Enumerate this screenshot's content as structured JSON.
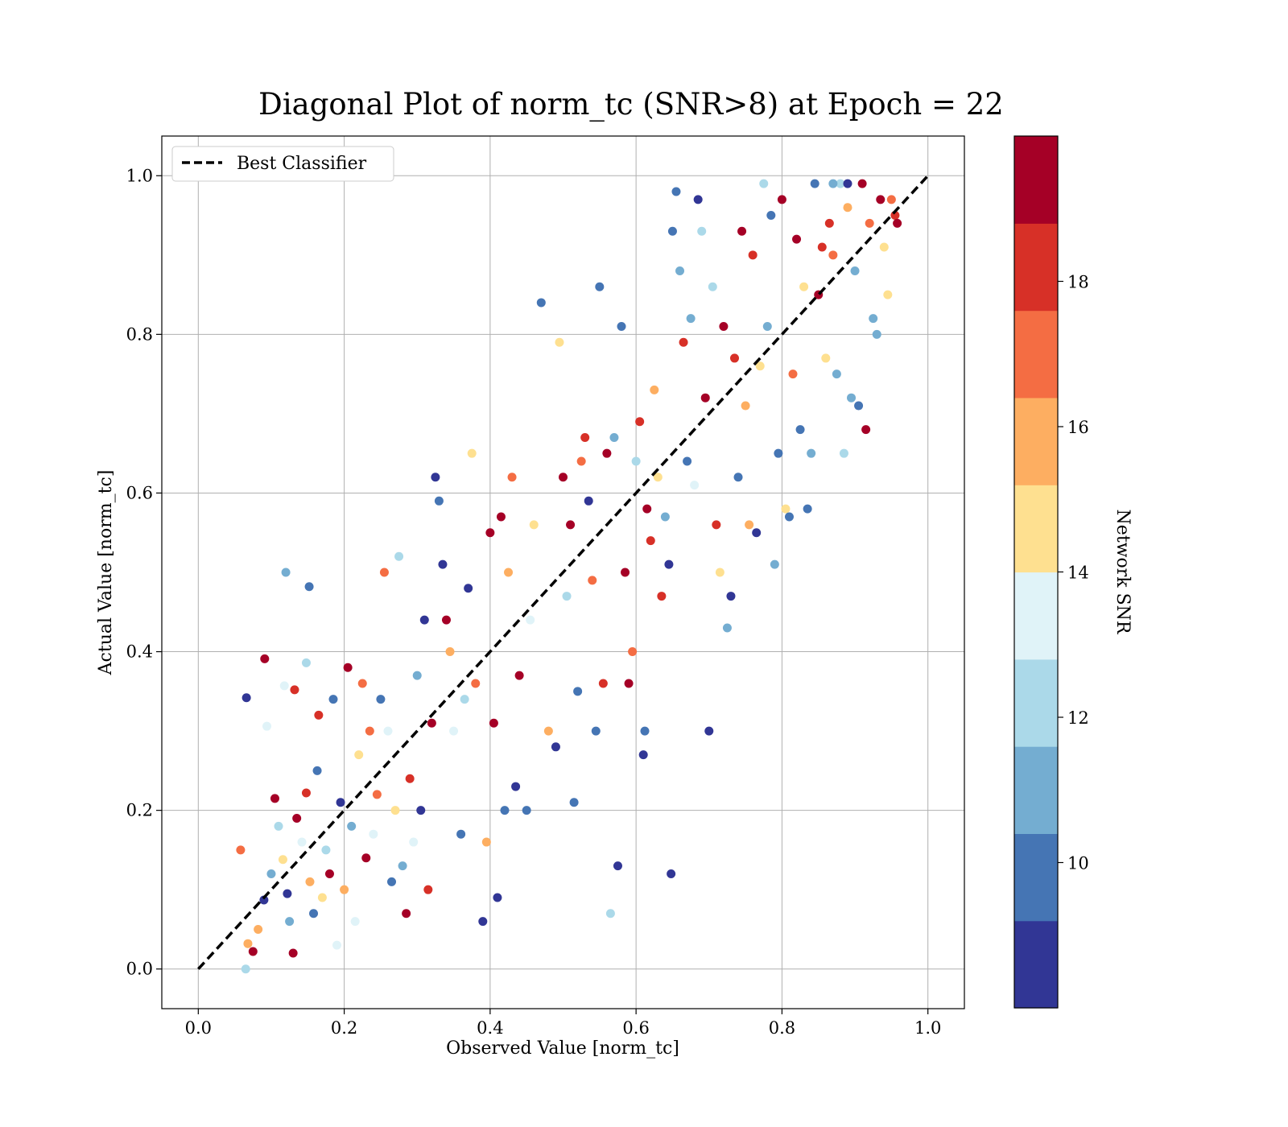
{
  "chart_data": {
    "type": "scatter",
    "title": "Diagonal Plot of norm_tc (SNR>8) at Epoch = 22",
    "xlabel": "Observed Value [norm_tc]",
    "ylabel": "Actual Value [norm_tc]",
    "xlim": [
      -0.05,
      1.05
    ],
    "ylim": [
      -0.05,
      1.05
    ],
    "xticks": [
      "0.0",
      "0.2",
      "0.4",
      "0.6",
      "0.8",
      "1.0"
    ],
    "yticks": [
      "0.0",
      "0.2",
      "0.4",
      "0.6",
      "0.8",
      "1.0"
    ],
    "grid": true,
    "legend": {
      "position": "upper-left",
      "entries": [
        "Best Classifier"
      ]
    },
    "reference_line": {
      "label": "Best Classifier",
      "x": [
        0,
        1
      ],
      "y": [
        0,
        1
      ],
      "style": "dashed",
      "color": "#000000"
    },
    "colorbar": {
      "label": "Network SNR",
      "range": [
        8,
        20
      ],
      "tick_values": [
        10,
        12,
        14,
        16,
        18
      ],
      "ticks": [
        "10",
        "12",
        "14",
        "16",
        "18"
      ],
      "colors": [
        "#313695",
        "#4575b4",
        "#74add1",
        "#abd9e9",
        "#e0f3f8",
        "#fee090",
        "#fdae61",
        "#f46d43",
        "#d73027",
        "#a50026"
      ]
    },
    "points": [
      [
        0.066,
        0.342,
        9.0
      ],
      [
        0.091,
        0.391,
        19.2
      ],
      [
        0.12,
        0.5,
        11.3
      ],
      [
        0.152,
        0.482,
        10.1
      ],
      [
        0.148,
        0.386,
        12.3
      ],
      [
        0.132,
        0.352,
        18.7
      ],
      [
        0.118,
        0.357,
        13.6
      ],
      [
        0.094,
        0.306,
        13.1
      ],
      [
        0.068,
        0.032,
        16.4
      ],
      [
        0.075,
        0.022,
        18.9
      ],
      [
        0.058,
        0.15,
        17.2
      ],
      [
        0.065,
        0.0,
        12.4
      ],
      [
        0.082,
        0.05,
        15.2
      ],
      [
        0.09,
        0.087,
        9.1
      ],
      [
        0.1,
        0.12,
        10.6
      ],
      [
        0.105,
        0.215,
        19.6
      ],
      [
        0.11,
        0.18,
        12.0
      ],
      [
        0.116,
        0.138,
        14.9
      ],
      [
        0.122,
        0.095,
        8.9
      ],
      [
        0.125,
        0.06,
        11.0
      ],
      [
        0.13,
        0.02,
        19.1
      ],
      [
        0.135,
        0.19,
        19.4
      ],
      [
        0.142,
        0.16,
        13.3
      ],
      [
        0.148,
        0.222,
        18.5
      ],
      [
        0.153,
        0.11,
        16.2
      ],
      [
        0.158,
        0.07,
        10.2
      ],
      [
        0.163,
        0.25,
        9.4
      ],
      [
        0.165,
        0.32,
        17.6
      ],
      [
        0.17,
        0.09,
        14.4
      ],
      [
        0.175,
        0.15,
        12.5
      ],
      [
        0.18,
        0.12,
        19.7
      ],
      [
        0.185,
        0.34,
        10.3
      ],
      [
        0.19,
        0.03,
        13.2
      ],
      [
        0.195,
        0.21,
        8.8
      ],
      [
        0.2,
        0.1,
        15.8
      ],
      [
        0.205,
        0.38,
        19.2
      ],
      [
        0.21,
        0.18,
        11.2
      ],
      [
        0.215,
        0.06,
        12.9
      ],
      [
        0.22,
        0.27,
        14.3
      ],
      [
        0.225,
        0.36,
        16.7
      ],
      [
        0.23,
        0.14,
        19.3
      ],
      [
        0.235,
        0.3,
        16.6
      ],
      [
        0.24,
        0.17,
        13.9
      ],
      [
        0.245,
        0.22,
        17.4
      ],
      [
        0.25,
        0.34,
        10.2
      ],
      [
        0.255,
        0.5,
        17.3
      ],
      [
        0.26,
        0.3,
        13.0
      ],
      [
        0.265,
        0.11,
        9.5
      ],
      [
        0.27,
        0.2,
        14.7
      ],
      [
        0.275,
        0.52,
        12.6
      ],
      [
        0.28,
        0.13,
        11.1
      ],
      [
        0.285,
        0.07,
        19.5
      ],
      [
        0.29,
        0.24,
        17.9
      ],
      [
        0.295,
        0.16,
        13.4
      ],
      [
        0.3,
        0.37,
        10.9
      ],
      [
        0.305,
        0.2,
        8.7
      ],
      [
        0.31,
        0.44,
        9.0
      ],
      [
        0.315,
        0.1,
        18.6
      ],
      [
        0.32,
        0.31,
        19.6
      ],
      [
        0.325,
        0.62,
        9.1
      ],
      [
        0.33,
        0.59,
        10.0
      ],
      [
        0.335,
        0.51,
        9.0
      ],
      [
        0.34,
        0.44,
        18.9
      ],
      [
        0.345,
        0.4,
        15.6
      ],
      [
        0.35,
        0.3,
        13.5
      ],
      [
        0.36,
        0.17,
        9.5
      ],
      [
        0.365,
        0.34,
        11.9
      ],
      [
        0.37,
        0.48,
        9.2
      ],
      [
        0.375,
        0.65,
        14.8
      ],
      [
        0.38,
        0.36,
        17.2
      ],
      [
        0.39,
        0.06,
        8.6
      ],
      [
        0.395,
        0.16,
        16.3
      ],
      [
        0.4,
        0.55,
        19.2
      ],
      [
        0.405,
        0.31,
        19.0
      ],
      [
        0.41,
        0.09,
        9.2
      ],
      [
        0.415,
        0.57,
        19.3
      ],
      [
        0.42,
        0.2,
        9.6
      ],
      [
        0.425,
        0.5,
        16.4
      ],
      [
        0.43,
        0.62,
        16.8
      ],
      [
        0.435,
        0.23,
        8.9
      ],
      [
        0.44,
        0.37,
        19.5
      ],
      [
        0.45,
        0.2,
        10.0
      ],
      [
        0.455,
        0.44,
        13.3
      ],
      [
        0.46,
        0.56,
        14.6
      ],
      [
        0.47,
        0.84,
        10.1
      ],
      [
        0.48,
        0.3,
        15.6
      ],
      [
        0.49,
        0.28,
        9.0
      ],
      [
        0.495,
        0.79,
        14.5
      ],
      [
        0.5,
        0.62,
        19.4
      ],
      [
        0.505,
        0.47,
        12.0
      ],
      [
        0.51,
        0.56,
        19.1
      ],
      [
        0.515,
        0.21,
        10.1
      ],
      [
        0.52,
        0.35,
        9.6
      ],
      [
        0.525,
        0.64,
        16.9
      ],
      [
        0.53,
        0.67,
        18.2
      ],
      [
        0.535,
        0.59,
        8.8
      ],
      [
        0.54,
        0.49,
        16.7
      ],
      [
        0.545,
        0.3,
        10.0
      ],
      [
        0.55,
        0.86,
        9.3
      ],
      [
        0.555,
        0.36,
        18.1
      ],
      [
        0.56,
        0.65,
        19.0
      ],
      [
        0.565,
        0.07,
        12.4
      ],
      [
        0.57,
        0.67,
        11.2
      ],
      [
        0.575,
        0.13,
        9.0
      ],
      [
        0.58,
        0.81,
        10.2
      ],
      [
        0.585,
        0.5,
        19.4
      ],
      [
        0.59,
        0.36,
        19.7
      ],
      [
        0.595,
        0.4,
        16.5
      ],
      [
        0.6,
        0.64,
        12.3
      ],
      [
        0.605,
        0.69,
        18.2
      ],
      [
        0.61,
        0.27,
        8.9
      ],
      [
        0.612,
        0.3,
        10.0
      ],
      [
        0.615,
        0.58,
        19.2
      ],
      [
        0.62,
        0.54,
        17.8
      ],
      [
        0.625,
        0.73,
        15.2
      ],
      [
        0.63,
        0.62,
        14.1
      ],
      [
        0.635,
        0.47,
        17.8
      ],
      [
        0.64,
        0.57,
        11.4
      ],
      [
        0.645,
        0.51,
        9.2
      ],
      [
        0.648,
        0.12,
        9.0
      ],
      [
        0.65,
        0.93,
        10.0
      ],
      [
        0.655,
        0.98,
        9.3
      ],
      [
        0.66,
        0.88,
        11.1
      ],
      [
        0.665,
        0.79,
        17.6
      ],
      [
        0.67,
        0.64,
        9.4
      ],
      [
        0.675,
        0.82,
        10.5
      ],
      [
        0.68,
        0.61,
        13.7
      ],
      [
        0.685,
        0.97,
        9.0
      ],
      [
        0.69,
        0.93,
        11.6
      ],
      [
        0.695,
        0.72,
        19.0
      ],
      [
        0.7,
        0.3,
        9.0
      ],
      [
        0.705,
        0.86,
        12.3
      ],
      [
        0.71,
        0.56,
        17.9
      ],
      [
        0.715,
        0.5,
        14.4
      ],
      [
        0.72,
        0.81,
        19.2
      ],
      [
        0.725,
        0.43,
        11.0
      ],
      [
        0.73,
        0.47,
        8.8
      ],
      [
        0.735,
        0.77,
        18.6
      ],
      [
        0.74,
        0.62,
        9.3
      ],
      [
        0.745,
        0.93,
        18.9
      ],
      [
        0.75,
        0.71,
        16.1
      ],
      [
        0.755,
        0.56,
        16.4
      ],
      [
        0.76,
        0.9,
        18.6
      ],
      [
        0.765,
        0.55,
        9.1
      ],
      [
        0.77,
        0.76,
        14.5
      ],
      [
        0.775,
        0.99,
        12.5
      ],
      [
        0.78,
        0.81,
        10.6
      ],
      [
        0.785,
        0.95,
        9.4
      ],
      [
        0.79,
        0.51,
        11.4
      ],
      [
        0.795,
        0.65,
        10.3
      ],
      [
        0.8,
        0.97,
        19.3
      ],
      [
        0.805,
        0.58,
        14.1
      ],
      [
        0.81,
        0.57,
        9.6
      ],
      [
        0.815,
        0.75,
        17.4
      ],
      [
        0.82,
        0.92,
        19.8
      ],
      [
        0.825,
        0.68,
        9.3
      ],
      [
        0.83,
        0.86,
        14.2
      ],
      [
        0.835,
        0.58,
        10.0
      ],
      [
        0.84,
        0.65,
        10.6
      ],
      [
        0.845,
        0.99,
        9.6
      ],
      [
        0.85,
        0.85,
        19.7
      ],
      [
        0.855,
        0.91,
        17.8
      ],
      [
        0.86,
        0.77,
        14.4
      ],
      [
        0.865,
        0.94,
        18.3
      ],
      [
        0.87,
        0.9,
        16.8
      ],
      [
        0.875,
        0.75,
        10.9
      ],
      [
        0.88,
        0.99,
        12.5
      ],
      [
        0.885,
        0.65,
        12.3
      ],
      [
        0.89,
        0.96,
        15.4
      ],
      [
        0.895,
        0.72,
        10.5
      ],
      [
        0.9,
        0.88,
        11.2
      ],
      [
        0.905,
        0.71,
        9.4
      ],
      [
        0.91,
        0.99,
        19.4
      ],
      [
        0.915,
        0.68,
        19.6
      ],
      [
        0.92,
        0.94,
        17.4
      ],
      [
        0.925,
        0.82,
        11.5
      ],
      [
        0.93,
        0.8,
        11.0
      ],
      [
        0.935,
        0.97,
        18.8
      ],
      [
        0.94,
        0.91,
        14.5
      ],
      [
        0.945,
        0.85,
        15.1
      ],
      [
        0.95,
        0.97,
        17.5
      ],
      [
        0.955,
        0.95,
        18.0
      ],
      [
        0.958,
        0.94,
        19.2
      ],
      [
        0.87,
        0.99,
        10.4
      ],
      [
        0.89,
        0.99,
        9.2
      ]
    ]
  }
}
